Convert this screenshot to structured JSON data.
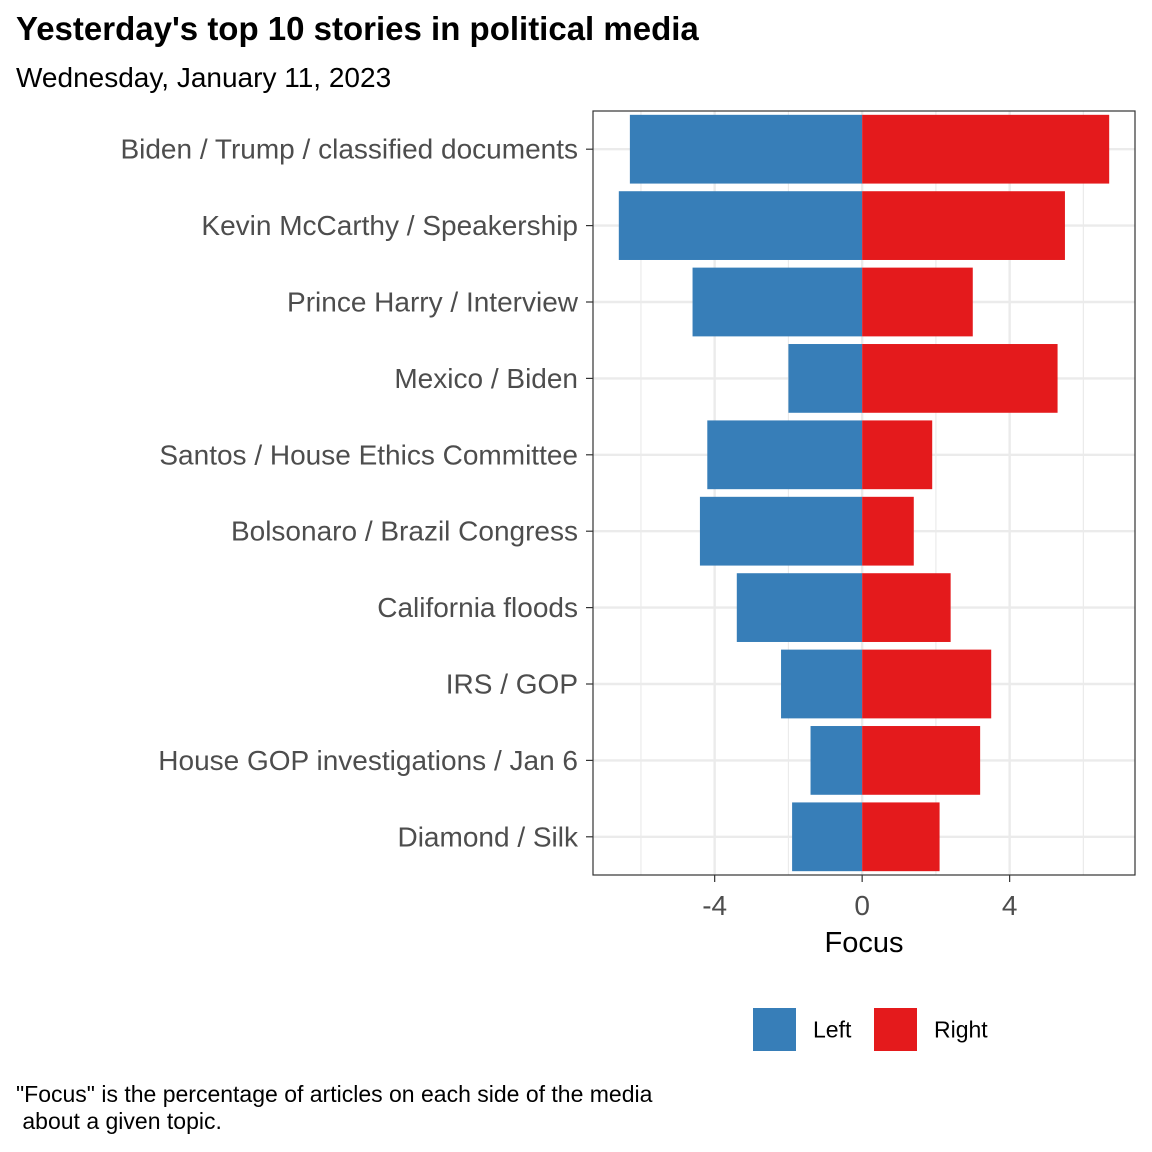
{
  "header": {
    "title": "Yesterday's top 10 stories in political media",
    "subtitle": "Wednesday, January 11, 2023"
  },
  "caption": "\"Focus\" is the percentage of articles on each side of the media\n about a given topic.",
  "colors": {
    "left": "#377EB8",
    "right": "#E41A1C",
    "grid": "#EBEBEB",
    "axis_text": "#4D4D4D",
    "panel_border": "#333333"
  },
  "chart_data": {
    "type": "bar",
    "orientation": "horizontal",
    "stacked": "diverging",
    "categories": [
      "Biden / Trump / classified documents",
      "Kevin McCarthy / Speakership",
      "Prince Harry / Interview",
      "Mexico / Biden",
      "Santos / House Ethics Committee",
      "Bolsonaro / Brazil Congress",
      "California floods",
      "IRS / GOP",
      "House GOP investigations / Jan 6",
      "Diamond / Silk"
    ],
    "series": [
      {
        "name": "Left",
        "values": [
          -6.3,
          -6.6,
          -4.6,
          -2.0,
          -4.2,
          -4.4,
          -3.4,
          -2.2,
          -1.4,
          -1.9
        ]
      },
      {
        "name": "Right",
        "values": [
          6.7,
          5.5,
          3.0,
          5.3,
          1.9,
          1.4,
          2.4,
          3.5,
          3.2,
          2.1
        ]
      }
    ],
    "xlabel": "Focus",
    "ylabel": "",
    "xlim": [
      -7.3,
      7.4
    ],
    "xticks": [
      -4,
      0,
      4
    ],
    "xtick_labels": [
      "-4",
      "0",
      "4"
    ],
    "grid": true,
    "legend": {
      "position": "bottom",
      "entries": [
        "Left",
        "Right"
      ]
    }
  }
}
